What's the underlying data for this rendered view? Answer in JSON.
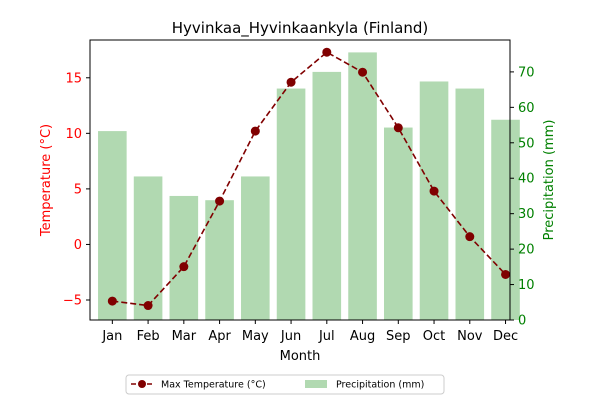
{
  "chart_data": {
    "type": "bar+line",
    "title": "Hyvinkaa_Hyvinkaankyla (Finland)",
    "xlabel": "Month",
    "categories": [
      "Jan",
      "Feb",
      "Mar",
      "Apr",
      "May",
      "Jun",
      "Jul",
      "Aug",
      "Sep",
      "Oct",
      "Nov",
      "Dec"
    ],
    "y_left": {
      "label": "Temperature (°C)",
      "color": "#ff0000",
      "lim": [
        -6.8,
        18.4
      ],
      "ticks": [
        -5,
        0,
        5,
        10,
        15
      ]
    },
    "y_right": {
      "label": "Precipitation (mm)",
      "color": "#008000",
      "lim": [
        0,
        79
      ],
      "ticks": [
        0,
        10,
        20,
        30,
        40,
        50,
        60,
        70
      ]
    },
    "series": [
      {
        "name": "Max Temperature (°C)",
        "kind": "line",
        "axis": "left",
        "color": "#800000",
        "line_style": "dashed",
        "marker": "circle",
        "values": [
          -5.1,
          -5.5,
          -2.0,
          3.9,
          10.2,
          14.6,
          17.3,
          15.5,
          10.5,
          4.8,
          0.7,
          -2.7
        ]
      },
      {
        "name": "Precipitation (mm)",
        "kind": "bar",
        "axis": "right",
        "color": "#b1d9b1",
        "values": [
          53.3,
          40.5,
          35.0,
          33.8,
          40.5,
          65.3,
          70.0,
          75.5,
          54.3,
          67.3,
          65.3,
          56.5
        ]
      }
    ],
    "legend": {
      "placement": "bottom-center",
      "entries": [
        "Max Temperature (°C)",
        "Precipitation (mm)"
      ]
    },
    "grid": false
  }
}
